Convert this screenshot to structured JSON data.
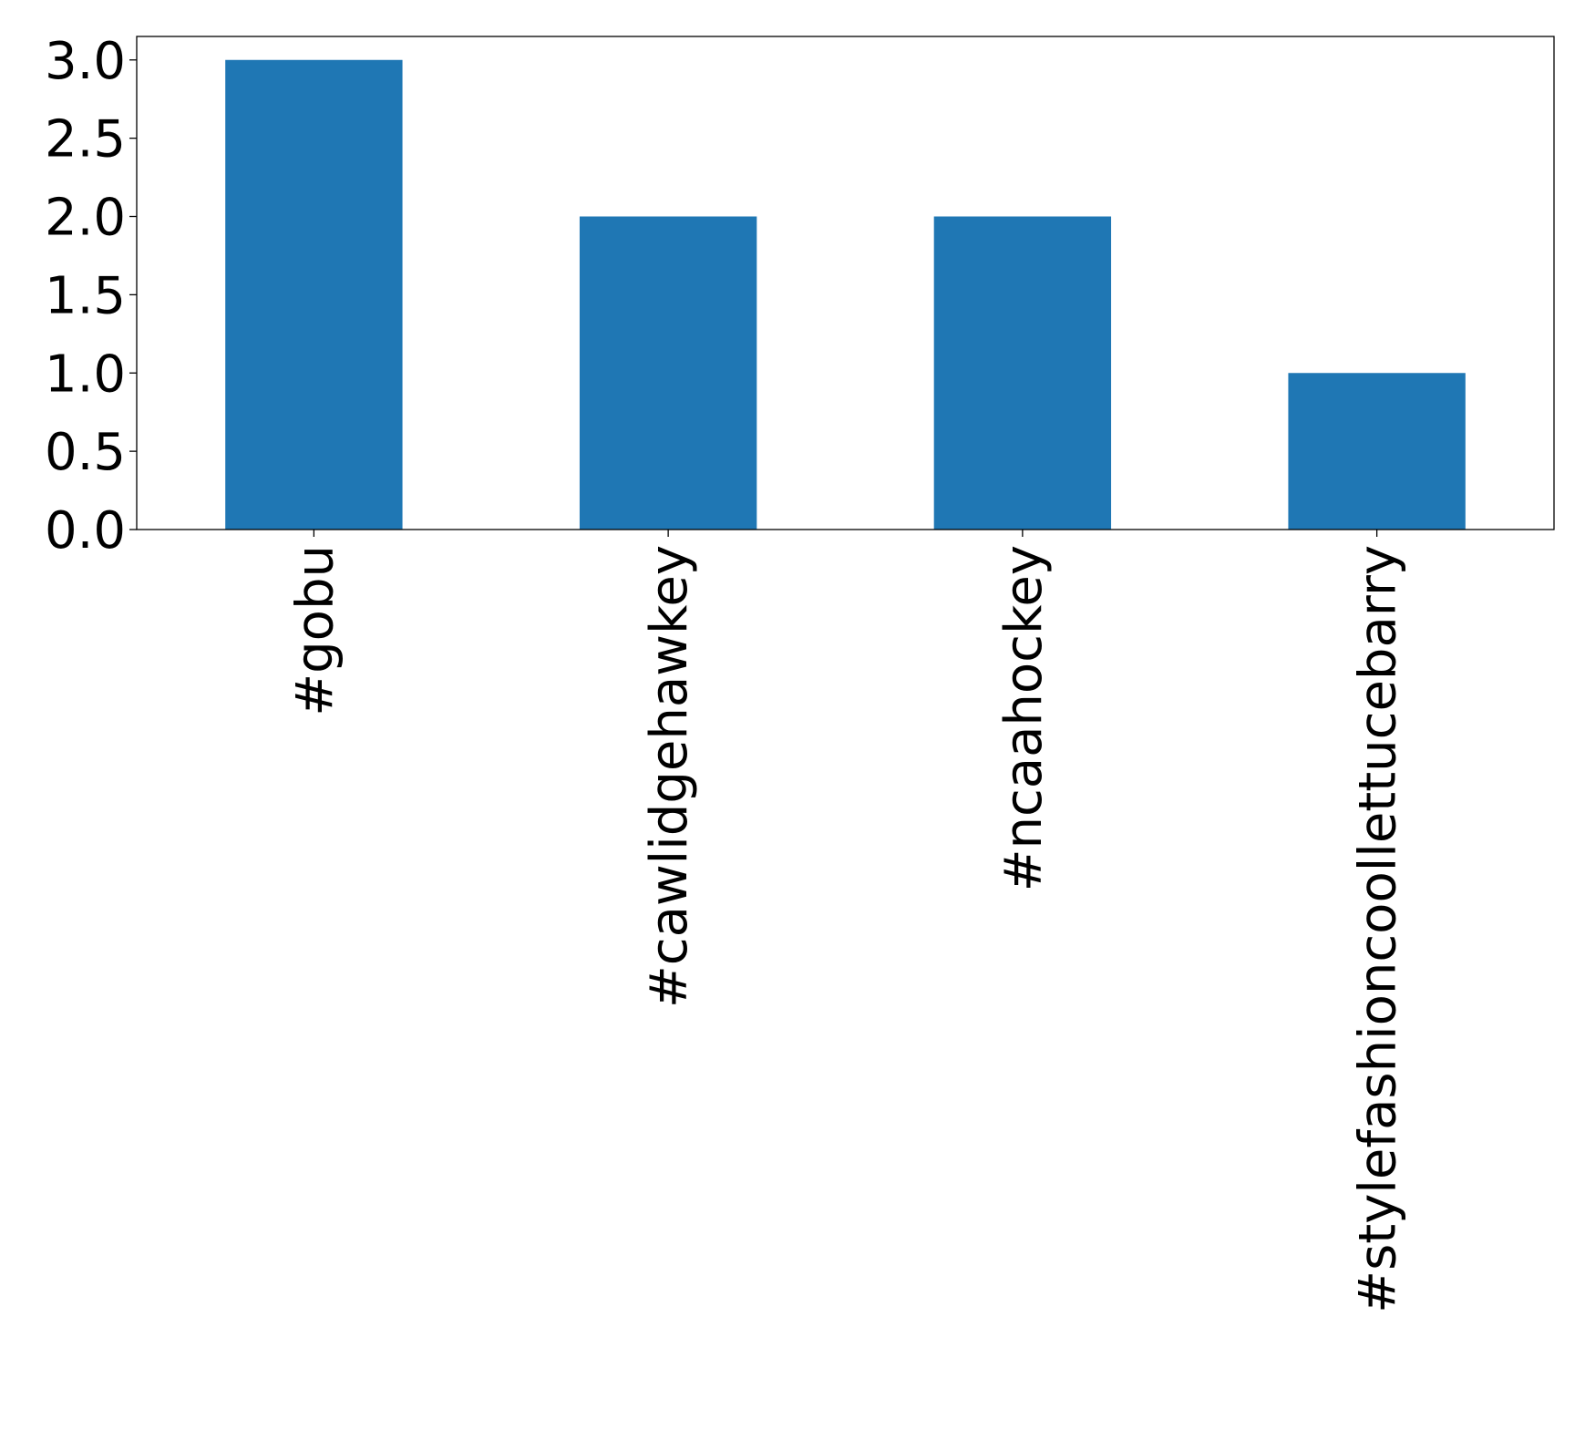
{
  "chart_data": {
    "type": "bar",
    "title": "",
    "xlabel": "",
    "ylabel": "",
    "categories": [
      "#gobu",
      "#cawlidgehawkey",
      "#ncaahockey",
      "#stylefashioncoollettucebarry"
    ],
    "values": [
      3,
      2,
      2,
      1
    ],
    "ylim": [
      0,
      3.15
    ],
    "yticks": [
      "0.0",
      "0.5",
      "1.0",
      "1.5",
      "2.0",
      "2.5",
      "3.0"
    ],
    "grid": false,
    "legend": "none",
    "bar_color": "#1f77b4"
  }
}
